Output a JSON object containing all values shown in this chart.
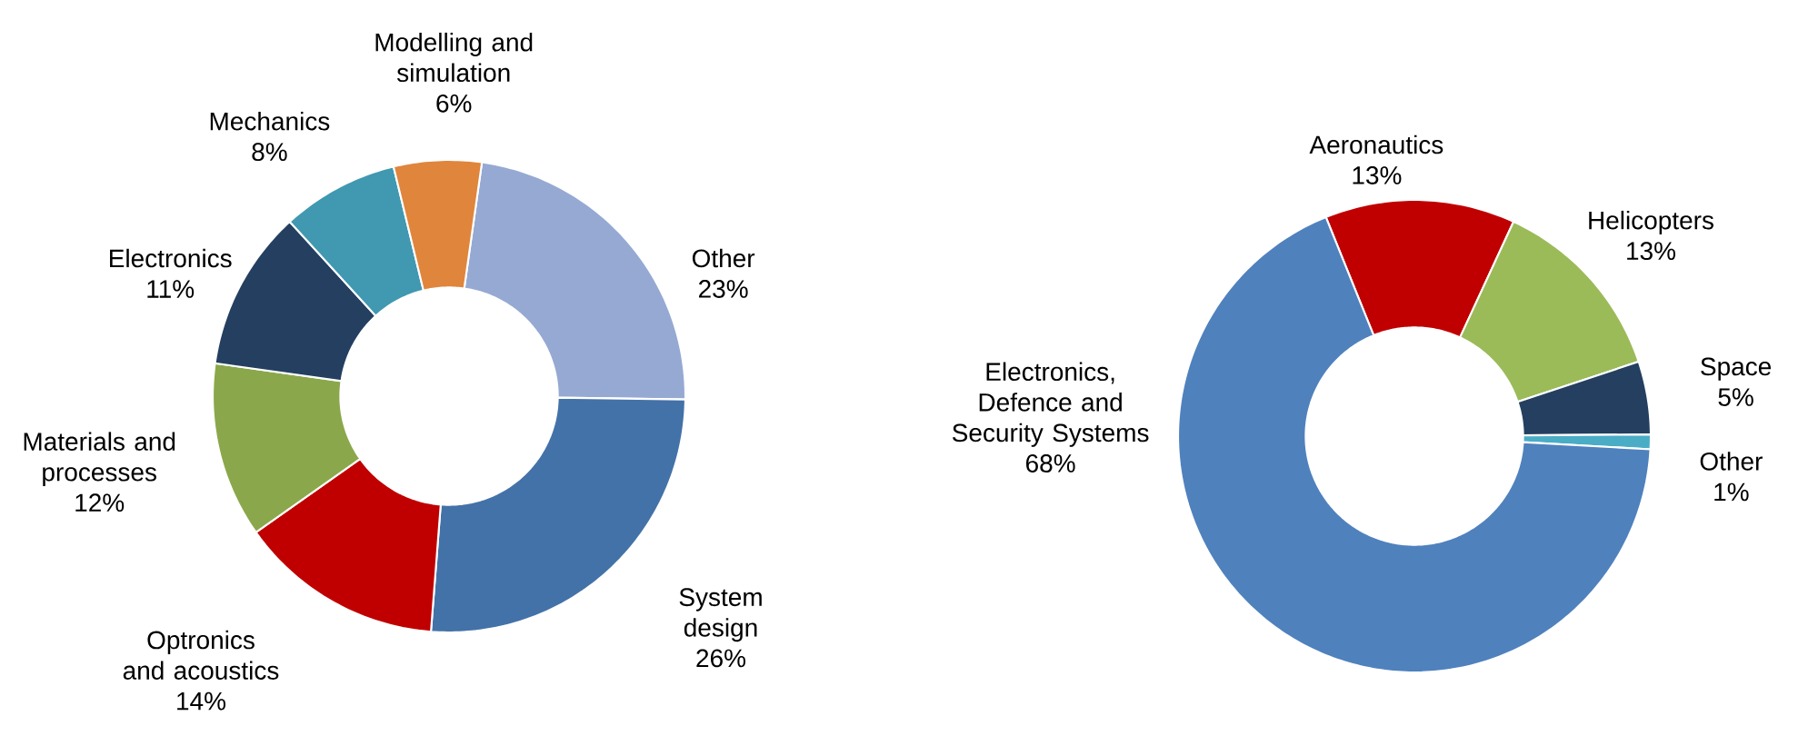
{
  "chart_data": [
    {
      "type": "donut",
      "categories": [
        "Other",
        "System design",
        "Optronics and acoustics",
        "Materials and processes",
        "Electronics",
        "Mechanics",
        "Modelling and simulation"
      ],
      "values": [
        23,
        26,
        14,
        12,
        11,
        8,
        6
      ],
      "colors": [
        "#95a9d3",
        "#4372a8",
        "#c00000",
        "#8aa84b",
        "#243f60",
        "#4198b1",
        "#e0853c"
      ],
      "value_labels": [
        "23%",
        "26%",
        "14%",
        "12%",
        "11%",
        "8%",
        "6%"
      ]
    },
    {
      "type": "donut",
      "categories": [
        "Aeronautics",
        "Helicopters",
        "Space",
        "Other",
        "Electronics, Defence and Security Systems"
      ],
      "values": [
        13,
        13,
        5,
        1,
        68
      ],
      "colors": [
        "#c00000",
        "#9bbb59",
        "#243f60",
        "#4bacc6",
        "#4f81bd"
      ],
      "value_labels": [
        "13%",
        "13%",
        "5%",
        "1%",
        "68%"
      ]
    }
  ]
}
